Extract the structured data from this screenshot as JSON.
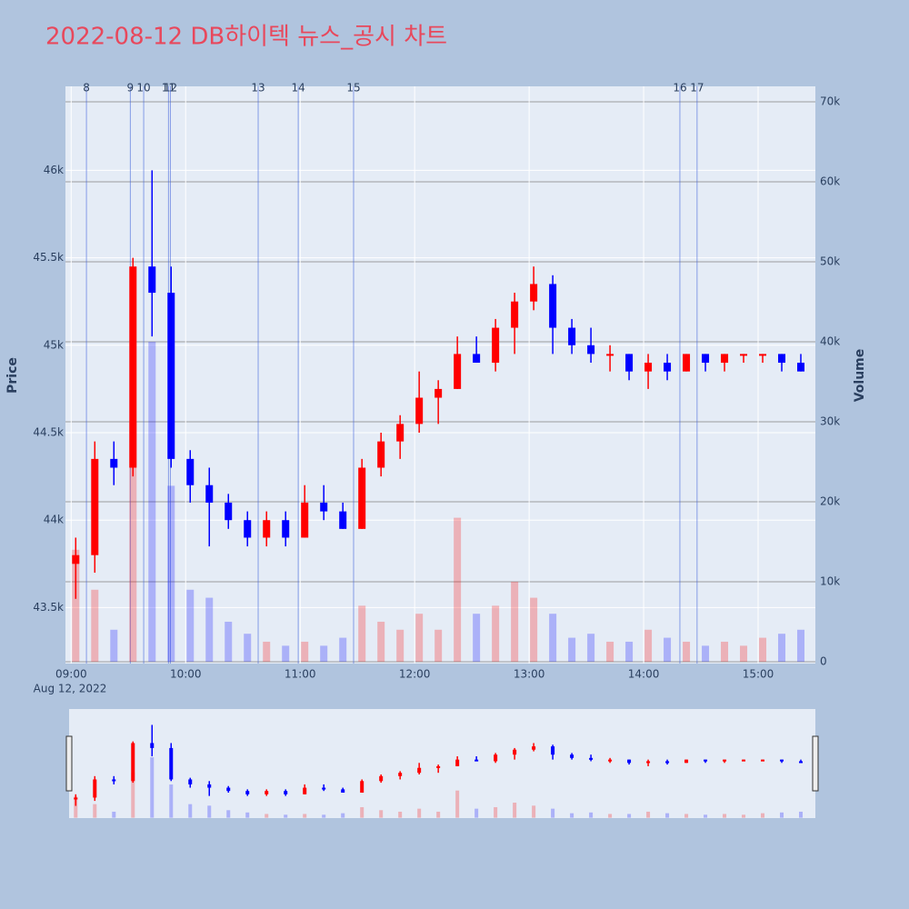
{
  "chart_data": {
    "type": "candlestick",
    "title": "2022-08-12 DB하이텍 뉴스_공시 차트",
    "y_label": "Price",
    "y2_label": "Volume",
    "date_label": "Aug 12, 2022",
    "up_color": "#ff0000",
    "down_color": "#0000ff",
    "xlim": [
      "08:57",
      "15:30"
    ],
    "xticks": [
      "09:00",
      "10:00",
      "11:00",
      "12:00",
      "13:00",
      "14:00",
      "15:00"
    ],
    "ylim": [
      43180,
      46480
    ],
    "yticks": [
      {
        "value": 43500,
        "label": "43.5k"
      },
      {
        "value": 44000,
        "label": "44k"
      },
      {
        "value": 44500,
        "label": "44.5k"
      },
      {
        "value": 45000,
        "label": "45k"
      },
      {
        "value": 45500,
        "label": "45.5k"
      },
      {
        "value": 46000,
        "label": "46k"
      }
    ],
    "y2lim": [
      -230,
      71930
    ],
    "y2ticks": [
      0,
      {
        "value": 10000,
        "label": "10k"
      },
      {
        "value": 20000,
        "label": "20k"
      },
      {
        "value": 30000,
        "label": "30k"
      },
      {
        "value": 40000,
        "label": "40k"
      },
      {
        "value": 50000,
        "label": "50k"
      },
      {
        "value": 60000,
        "label": "60k"
      },
      {
        "value": 70000,
        "label": "70k"
      }
    ],
    "x": [
      "09:00",
      "09:10",
      "09:20",
      "09:30",
      "09:40",
      "09:50",
      "10:00",
      "10:10",
      "10:20",
      "10:30",
      "10:40",
      "10:50",
      "11:00",
      "11:10",
      "11:20",
      "11:30",
      "11:40",
      "11:50",
      "12:00",
      "12:10",
      "12:20",
      "12:30",
      "12:40",
      "12:50",
      "13:00",
      "13:10",
      "13:20",
      "13:30",
      "13:40",
      "13:50",
      "14:00",
      "14:10",
      "14:20",
      "14:30",
      "14:40",
      "14:50",
      "15:00",
      "15:10",
      "15:20"
    ],
    "open": [
      43750,
      43800,
      44350,
      44300,
      45450,
      45300,
      44350,
      44200,
      44100,
      44000,
      43900,
      44000,
      43900,
      44100,
      44050,
      43950,
      44300,
      44450,
      44550,
      44700,
      44750,
      44950,
      44900,
      45100,
      45250,
      45350,
      45100,
      45000,
      44950,
      44950,
      44850,
      44900,
      44850,
      44950,
      44900,
      44950,
      44950,
      44950,
      44900
    ],
    "high": [
      43900,
      44450,
      44450,
      45500,
      46000,
      45450,
      44400,
      44300,
      44150,
      44050,
      44050,
      44050,
      44200,
      44200,
      44100,
      44350,
      44500,
      44600,
      44850,
      44800,
      45050,
      45050,
      45150,
      45300,
      45450,
      45400,
      45150,
      45100,
      45000,
      44950,
      44950,
      44950,
      44950,
      44950,
      44950,
      44950,
      44950,
      44950,
      44950
    ],
    "low": [
      43550,
      43700,
      44200,
      44250,
      45050,
      44300,
      44100,
      43850,
      43950,
      43850,
      43850,
      43850,
      43900,
      44000,
      43950,
      43950,
      44250,
      44350,
      44500,
      44550,
      44750,
      44900,
      44850,
      44950,
      45200,
      44950,
      44950,
      44900,
      44850,
      44800,
      44750,
      44800,
      44850,
      44850,
      44850,
      44900,
      44900,
      44850,
      44850
    ],
    "close": [
      43800,
      44350,
      44300,
      45450,
      45300,
      44350,
      44200,
      44100,
      44000,
      43900,
      44000,
      43900,
      44100,
      44050,
      43950,
      44300,
      44450,
      44550,
      44700,
      44750,
      44950,
      44900,
      45100,
      45250,
      45350,
      45100,
      45000,
      44950,
      44950,
      44850,
      44900,
      44850,
      44950,
      44900,
      44950,
      44950,
      44950,
      44900,
      44850
    ],
    "volume": [
      14000,
      9000,
      4000,
      30000,
      40000,
      22000,
      9000,
      8000,
      5000,
      3500,
      2500,
      2000,
      2500,
      2000,
      3000,
      7000,
      5000,
      4000,
      6000,
      4000,
      18000,
      6000,
      7000,
      10000,
      8000,
      6000,
      3000,
      3500,
      2500,
      2500,
      4000,
      3000,
      2500,
      2000,
      2500,
      2000,
      3000,
      3500,
      4000
    ],
    "events": [
      {
        "x": "09:08",
        "label": "8"
      },
      {
        "x": "09:31",
        "label": "9"
      },
      {
        "x": "09:38",
        "label": "10"
      },
      {
        "x": "09:51",
        "label": "11"
      },
      {
        "x": "09:52",
        "label": "12"
      },
      {
        "x": "10:38",
        "label": "13"
      },
      {
        "x": "10:59",
        "label": "14"
      },
      {
        "x": "11:28",
        "label": "15"
      },
      {
        "x": "14:19",
        "label": "16"
      },
      {
        "x": "14:28",
        "label": "17"
      }
    ]
  }
}
